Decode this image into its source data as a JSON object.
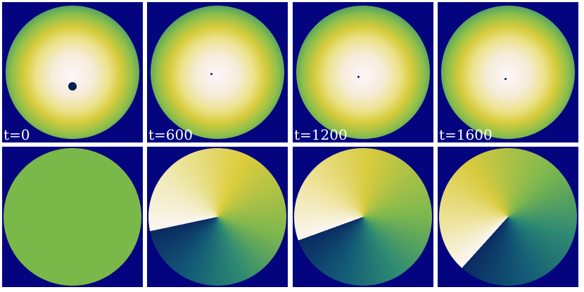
{
  "panels": [
    {
      "label": "t=0"
    },
    {
      "label": "t=600"
    },
    {
      "label": "t=1200"
    },
    {
      "label": "t=1600"
    }
  ]
}
